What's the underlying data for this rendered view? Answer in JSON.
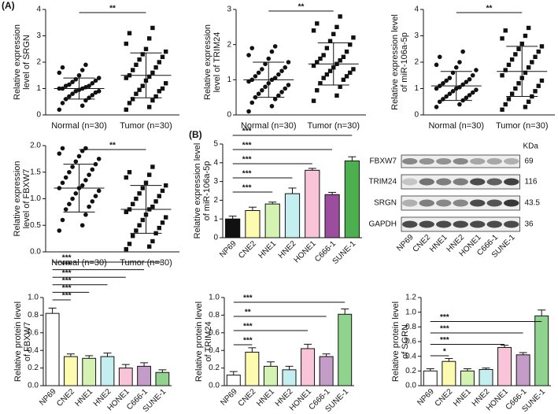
{
  "panel_labels": [
    "(A)",
    "(B)"
  ],
  "chart_data": [
    {
      "type": "dotplot",
      "ylabel": [
        "Relative expression",
        "level of SRGN"
      ],
      "categories": [
        "Normal (n=30)",
        "Tumor (n=30)"
      ],
      "points": [
        [
          0.2,
          0.35,
          0.45,
          0.55,
          0.6,
          0.65,
          0.7,
          0.75,
          0.8,
          0.85,
          0.9,
          0.9,
          0.95,
          1.0,
          1.0,
          1.0,
          1.05,
          1.1,
          1.1,
          1.15,
          1.2,
          1.25,
          1.3,
          1.35,
          1.4,
          1.5,
          1.6,
          1.7,
          1.8,
          1.9
        ],
        [
          0.2,
          0.3,
          0.45,
          0.55,
          0.6,
          0.7,
          0.8,
          0.9,
          0.95,
          1.0,
          1.1,
          1.2,
          1.3,
          1.4,
          1.45,
          1.5,
          1.6,
          1.7,
          1.8,
          1.9,
          2.0,
          2.1,
          2.2,
          2.3,
          2.4,
          2.5,
          2.7,
          2.9,
          3.1,
          3.3
        ]
      ],
      "means": [
        1.0,
        1.5
      ],
      "sds": [
        0.4,
        0.85
      ],
      "ylim": [
        0,
        4
      ],
      "yticks": [
        0,
        1,
        2,
        3,
        4
      ],
      "comparisons": [
        {
          "pair": [
            "Normal (n=30)",
            "Tumor (n=30)"
          ],
          "label": "**"
        }
      ]
    },
    {
      "type": "dotplot",
      "ylabel": [
        "Relative expression",
        "level of TRIM24"
      ],
      "categories": [
        "Normal (n=30)",
        "Tumor (n=30)"
      ],
      "points": [
        [
          0.1,
          0.25,
          0.35,
          0.45,
          0.5,
          0.55,
          0.6,
          0.65,
          0.7,
          0.75,
          0.8,
          0.85,
          0.9,
          0.95,
          1.0,
          1.0,
          1.05,
          1.1,
          1.15,
          1.2,
          1.25,
          1.3,
          1.35,
          1.45,
          1.5,
          1.6,
          1.7,
          1.8,
          1.9,
          1.95
        ],
        [
          0.4,
          0.55,
          0.7,
          0.8,
          0.9,
          1.0,
          1.05,
          1.1,
          1.15,
          1.2,
          1.25,
          1.3,
          1.35,
          1.4,
          1.45,
          1.5,
          1.55,
          1.6,
          1.65,
          1.7,
          1.8,
          1.9,
          2.0,
          2.1,
          2.2,
          2.3,
          2.4,
          2.5,
          2.6,
          2.8
        ]
      ],
      "means": [
        1.0,
        1.45
      ],
      "sds": [
        0.5,
        0.6
      ],
      "ylim": [
        0,
        3
      ],
      "yticks": [
        0,
        1,
        2,
        3
      ],
      "comparisons": [
        {
          "pair": [
            "Normal (n=30)",
            "Tumor (n=30)"
          ],
          "label": "**"
        }
      ]
    },
    {
      "type": "dotplot",
      "ylabel": [
        "Relative expression level",
        "of miR-106a-5p"
      ],
      "categories": [
        "Normal (n=30)",
        "Tumor (n=30)"
      ],
      "points": [
        [
          0.3,
          0.4,
          0.5,
          0.55,
          0.6,
          0.65,
          0.7,
          0.75,
          0.8,
          0.85,
          0.9,
          0.95,
          1.0,
          1.0,
          1.05,
          1.1,
          1.15,
          1.2,
          1.25,
          1.3,
          1.35,
          1.4,
          1.5,
          1.6,
          1.7,
          1.8,
          1.9,
          2.0,
          2.2,
          2.4
        ],
        [
          0.2,
          0.3,
          0.4,
          0.5,
          0.6,
          0.7,
          0.8,
          0.9,
          1.0,
          1.1,
          1.2,
          1.3,
          1.4,
          1.5,
          1.6,
          1.7,
          1.8,
          1.9,
          2.0,
          2.1,
          2.2,
          2.3,
          2.4,
          2.5,
          2.6,
          2.7,
          2.9,
          3.0,
          3.2,
          3.3
        ]
      ],
      "means": [
        1.1,
        1.65
      ],
      "sds": [
        0.55,
        0.95
      ],
      "ylim": [
        0,
        4
      ],
      "yticks": [
        0,
        1,
        2,
        3,
        4
      ],
      "comparisons": [
        {
          "pair": [
            "Normal (n=30)",
            "Tumor (n=30)"
          ],
          "label": "**"
        }
      ]
    },
    {
      "type": "dotplot",
      "ylabel": [
        "Relative expression",
        "level of FBXW7"
      ],
      "categories": [
        "Normal (n=30)",
        "Tumor (n=30)"
      ],
      "points": [
        [
          0.4,
          0.5,
          0.6,
          0.7,
          0.8,
          0.85,
          0.9,
          0.95,
          1.0,
          1.05,
          1.1,
          1.15,
          1.2,
          1.2,
          1.25,
          1.3,
          1.35,
          1.4,
          1.45,
          1.5,
          1.55,
          1.6,
          1.65,
          1.7,
          1.75,
          1.8,
          1.85,
          1.9,
          1.95,
          1.95
        ],
        [
          0.05,
          0.1,
          0.15,
          0.2,
          0.3,
          0.35,
          0.4,
          0.45,
          0.5,
          0.55,
          0.6,
          0.65,
          0.7,
          0.75,
          0.8,
          0.8,
          0.85,
          0.9,
          0.95,
          1.0,
          1.05,
          1.1,
          1.15,
          1.2,
          1.25,
          1.3,
          1.4,
          1.45,
          1.5,
          1.6
        ]
      ],
      "means": [
        1.2,
        0.8
      ],
      "sds": [
        0.45,
        0.45
      ],
      "ylim": [
        0,
        2
      ],
      "yticks": [
        {
          "value": 0,
          "label": "0.0"
        },
        0.5,
        {
          "value": 1,
          "label": "1.0"
        },
        1.5,
        {
          "value": 2,
          "label": "2.0"
        }
      ],
      "comparisons": [
        {
          "pair": [
            "Normal (n=30)",
            "Tumor (n=30)"
          ],
          "label": "**"
        }
      ]
    },
    {
      "type": "bar",
      "ylabel": [
        "Relative expression level",
        "of miR-106a-5p"
      ],
      "categories": [
        "NP69",
        "CNE2",
        "HNE1",
        "HNE2",
        "HONE1",
        "C666-1",
        "SUNE-1"
      ],
      "values": [
        1.0,
        1.45,
        1.8,
        2.35,
        3.6,
        2.3,
        4.1
      ],
      "errors": [
        0.15,
        0.18,
        0.1,
        0.3,
        0.1,
        0.12,
        0.22
      ],
      "colors": [
        "#111111",
        "#fdfbb0",
        "#d4f3b2",
        "#c4eef0",
        "#f9c4d8",
        "#9c4d9e",
        "#4caf50"
      ],
      "ylim": [
        0,
        5
      ],
      "yticks": [
        0,
        1,
        2,
        3,
        4,
        5
      ],
      "comparisons": [
        {
          "pair": [
            "NP69",
            "HNE1"
          ],
          "label": "***"
        },
        {
          "pair": [
            "NP69",
            "HNE2"
          ],
          "label": "***"
        },
        {
          "pair": [
            "NP69",
            "HONE1"
          ],
          "label": "***"
        },
        {
          "pair": [
            "NP69",
            "C666-1"
          ],
          "label": "***"
        },
        {
          "pair": [
            "NP69",
            "SUNE-1"
          ],
          "label": "***"
        }
      ]
    },
    {
      "type": "bar",
      "ylabel": [
        "Relative protein level",
        "of FBXW7"
      ],
      "categories": [
        "NP69",
        "CNE2",
        "HNE1",
        "HNE2",
        "HONE1",
        "C666-1",
        "SUNE-1"
      ],
      "values": [
        0.82,
        0.33,
        0.31,
        0.33,
        0.2,
        0.22,
        0.15
      ],
      "errors": [
        0.06,
        0.03,
        0.03,
        0.04,
        0.04,
        0.04,
        0.03
      ],
      "colors": [
        "#ffffff",
        "#fdfbb0",
        "#d4f3b2",
        "#c4eef0",
        "#f9c4d8",
        "#c39cc8",
        "#8fd38f"
      ],
      "ylim": [
        0,
        1
      ],
      "yticks": [
        {
          "value": 0,
          "label": "0.0"
        },
        0.2,
        0.4,
        0.6,
        0.8,
        {
          "value": 1,
          "label": "1.0"
        }
      ],
      "comparisons": [
        {
          "pair": [
            "NP69",
            "CNE2"
          ],
          "label": "***"
        },
        {
          "pair": [
            "NP69",
            "HNE1"
          ],
          "label": "***"
        },
        {
          "pair": [
            "NP69",
            "HNE2"
          ],
          "label": "***"
        },
        {
          "pair": [
            "NP69",
            "HONE1"
          ],
          "label": "***"
        },
        {
          "pair": [
            "NP69",
            "C666-1"
          ],
          "label": "***"
        },
        {
          "pair": [
            "NP69",
            "SUNE-1"
          ],
          "label": "***"
        }
      ]
    },
    {
      "type": "bar",
      "ylabel": [
        "Relative protein level",
        "of TRIM24"
      ],
      "categories": [
        "NP69",
        "CNE2",
        "HNE1",
        "HNE2",
        "HONE1",
        "C666-1",
        "SUNE-1"
      ],
      "values": [
        0.12,
        0.38,
        0.22,
        0.18,
        0.42,
        0.33,
        0.81
      ],
      "errors": [
        0.04,
        0.05,
        0.05,
        0.04,
        0.05,
        0.03,
        0.06
      ],
      "colors": [
        "#ffffff",
        "#fdfbb0",
        "#d4f3b2",
        "#c4eef0",
        "#f9c4d8",
        "#c39cc8",
        "#8fd38f"
      ],
      "ylim": [
        0,
        1
      ],
      "yticks": [
        {
          "value": 0,
          "label": "0.0"
        },
        0.2,
        0.4,
        0.6,
        0.8,
        {
          "value": 1,
          "label": "1.0"
        }
      ],
      "comparisons": [
        {
          "pair": [
            "NP69",
            "CNE2"
          ],
          "label": "***"
        },
        {
          "pair": [
            "NP69",
            "HONE1"
          ],
          "label": "***"
        },
        {
          "pair": [
            "NP69",
            "C666-1"
          ],
          "label": "**"
        },
        {
          "pair": [
            "NP69",
            "SUNE-1"
          ],
          "label": "***"
        }
      ]
    },
    {
      "type": "bar",
      "ylabel": [
        "Relative protein level",
        "of SGRN"
      ],
      "categories": [
        "NP69",
        "CNE2",
        "HNE1",
        "HNE2",
        "HONE1",
        "C666-1",
        "SUNE-1"
      ],
      "values": [
        0.2,
        0.33,
        0.2,
        0.22,
        0.52,
        0.42,
        0.95
      ],
      "errors": [
        0.03,
        0.04,
        0.03,
        0.02,
        0.03,
        0.03,
        0.08
      ],
      "colors": [
        "#ffffff",
        "#fdfbb0",
        "#d4f3b2",
        "#c4eef0",
        "#f9c4d8",
        "#c39cc8",
        "#8fd38f"
      ],
      "ylim": [
        0,
        1.2
      ],
      "yticks": [
        {
          "value": 0,
          "label": "0.0"
        },
        0.2,
        0.4,
        0.6,
        0.8,
        {
          "value": 1,
          "label": "1.0"
        },
        1.2
      ],
      "comparisons": [
        {
          "pair": [
            "NP69",
            "CNE2"
          ],
          "label": "*"
        },
        {
          "pair": [
            "NP69",
            "HONE1"
          ],
          "label": "***"
        },
        {
          "pair": [
            "NP69",
            "C666-1"
          ],
          "label": "***"
        },
        {
          "pair": [
            "NP69",
            "SUNE-1"
          ],
          "label": "***"
        }
      ]
    }
  ],
  "blot": {
    "proteins": [
      "FBXW7",
      "TRIM24",
      "SRGN",
      "GAPDH"
    ],
    "kda_title": "KDa",
    "kda": [
      69,
      116,
      43.5,
      36
    ],
    "lanes": [
      "NP69",
      "CNE2",
      "HNE1",
      "HNE2",
      "HONE1",
      "C666-1",
      "SUNE-1"
    ]
  }
}
